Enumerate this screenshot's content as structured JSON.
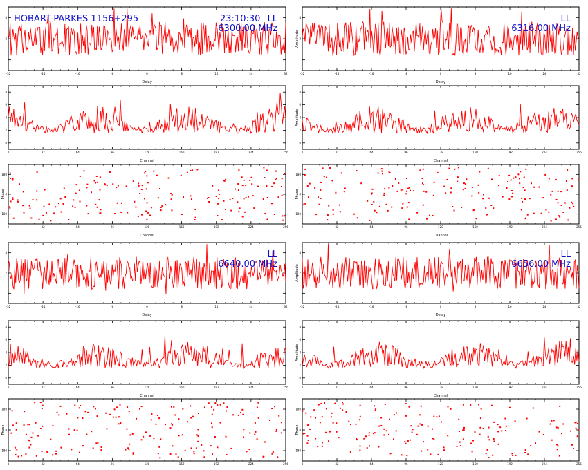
{
  "header": {
    "baseline": "HOBART-PARKES 1156+295",
    "time": "23:10:30"
  },
  "colors": {
    "trace": "#ff0000",
    "annotation": "#1010c8",
    "axis": "#000000",
    "background": "#ffffff"
  },
  "chart_data": [
    {
      "id": "band1-delay",
      "type": "line",
      "panel_type": "delay",
      "polarization": "LL",
      "frequency": "6300.00 MHz",
      "xlabel": "Delay",
      "ylabel": "",
      "xlim": [
        -32,
        32
      ],
      "ylim": [
        0,
        6
      ],
      "n_points": 300,
      "ytick_labels": [
        "",
        "2",
        "4"
      ],
      "xtick_labels": [
        "-32",
        "-24",
        "-16",
        "-8",
        "0",
        "8",
        "16",
        "24",
        "32"
      ]
    },
    {
      "id": "band2-delay",
      "type": "line",
      "panel_type": "delay",
      "polarization": "LL",
      "frequency": "6316.00 MHz",
      "xlabel": "Delay",
      "ylabel": "Amplitude",
      "xlim": [
        -32,
        32
      ],
      "ylim": [
        0,
        6
      ],
      "n_points": 300,
      "ytick_labels": [
        "",
        "2",
        "4"
      ],
      "xtick_labels": [
        "-32",
        "-24",
        "-16",
        "-8",
        "0",
        "8",
        "16",
        "24",
        "32"
      ]
    },
    {
      "id": "band1-channel",
      "type": "line",
      "panel_type": "channel",
      "xlabel": "Channel",
      "ylabel": "",
      "xlim": [
        0,
        256
      ],
      "ylim": [
        0,
        8
      ],
      "n_points": 256,
      "ytick_labels": [
        "0",
        "2",
        "4",
        "6",
        "8"
      ],
      "xtick_labels": [
        "0",
        "32",
        "64",
        "96",
        "128",
        "160",
        "192",
        "224",
        "256"
      ]
    },
    {
      "id": "band2-channel",
      "type": "line",
      "panel_type": "channel",
      "xlabel": "Channel",
      "ylabel": "Amplitude",
      "xlim": [
        0,
        256
      ],
      "ylim": [
        0,
        8
      ],
      "n_points": 256,
      "ytick_labels": [
        "0",
        "2",
        "4",
        "6",
        "8"
      ],
      "xtick_labels": [
        "0",
        "32",
        "64",
        "96",
        "128",
        "160",
        "192",
        "224",
        "256"
      ]
    },
    {
      "id": "band1-phase",
      "type": "scatter",
      "panel_type": "phase",
      "xlabel": "Channel",
      "ylabel": "Phase",
      "xlim": [
        0,
        256
      ],
      "ylim": [
        -180,
        180
      ],
      "n_points": 190,
      "ytick_labels": [
        "-180",
        "0",
        "180"
      ],
      "xtick_labels": [
        "0",
        "32",
        "64",
        "96",
        "128",
        "160",
        "192",
        "224",
        "256"
      ]
    },
    {
      "id": "band2-phase",
      "type": "scatter",
      "panel_type": "phase",
      "xlabel": "Channel",
      "ylabel": "Phase",
      "xlim": [
        0,
        256
      ],
      "ylim": [
        -180,
        180
      ],
      "n_points": 190,
      "ytick_labels": [
        "-180",
        "0",
        "180"
      ],
      "xtick_labels": [
        "0",
        "32",
        "64",
        "96",
        "128",
        "160",
        "192",
        "224",
        "256"
      ]
    },
    {
      "id": "band3-delay",
      "type": "line",
      "panel_type": "delay",
      "polarization": "LL",
      "frequency": "6640.00 MHz",
      "xlabel": "Delay",
      "ylabel": "",
      "xlim": [
        -32,
        32
      ],
      "ylim": [
        0,
        6
      ],
      "n_points": 300,
      "ytick_labels": [
        "",
        "2",
        "4"
      ],
      "xtick_labels": [
        "-32",
        "-24",
        "-16",
        "-8",
        "0",
        "8",
        "16",
        "24",
        "32"
      ]
    },
    {
      "id": "band4-delay",
      "type": "line",
      "panel_type": "delay",
      "polarization": "LL",
      "frequency": "6656.00 MHz",
      "xlabel": "Delay",
      "ylabel": "Amplitude",
      "xlim": [
        -32,
        32
      ],
      "ylim": [
        0,
        6
      ],
      "n_points": 300,
      "ytick_labels": [
        "",
        "2",
        "4"
      ],
      "xtick_labels": [
        "-32",
        "-24",
        "-16",
        "-8",
        "0",
        "8",
        "16",
        "24",
        "32"
      ]
    },
    {
      "id": "band3-channel",
      "type": "line",
      "panel_type": "channel",
      "xlabel": "Channel",
      "ylabel": "",
      "xlim": [
        0,
        256
      ],
      "ylim": [
        0,
        8
      ],
      "n_points": 256,
      "ytick_labels": [
        "0",
        "2",
        "4",
        "6",
        "8"
      ],
      "xtick_labels": [
        "0",
        "32",
        "64",
        "96",
        "128",
        "160",
        "192",
        "224",
        "256"
      ]
    },
    {
      "id": "band4-channel",
      "type": "line",
      "panel_type": "channel",
      "xlabel": "Channel",
      "ylabel": "Amplitude",
      "xlim": [
        0,
        256
      ],
      "ylim": [
        0,
        8
      ],
      "n_points": 256,
      "ytick_labels": [
        "0",
        "2",
        "4",
        "6",
        "8"
      ],
      "xtick_labels": [
        "0",
        "32",
        "64",
        "96",
        "128",
        "160",
        "192",
        "224",
        "256"
      ]
    },
    {
      "id": "band3-phase",
      "type": "scatter",
      "panel_type": "phase",
      "xlabel": "Channel",
      "ylabel": "Phase",
      "xlim": [
        0,
        256
      ],
      "ylim": [
        -180,
        180
      ],
      "n_points": 190,
      "ytick_labels": [
        "-180",
        "0",
        "180"
      ],
      "xtick_labels": [
        "0",
        "32",
        "64",
        "96",
        "128",
        "160",
        "192",
        "224",
        "256"
      ]
    },
    {
      "id": "band4-phase",
      "type": "scatter",
      "panel_type": "phase",
      "xlabel": "Channel",
      "ylabel": "Phase",
      "xlim": [
        0,
        256
      ],
      "ylim": [
        -180,
        180
      ],
      "n_points": 190,
      "ytick_labels": [
        "-180",
        "0",
        "180"
      ],
      "xtick_labels": [
        "0",
        "32",
        "64",
        "96",
        "128",
        "160",
        "192",
        "224",
        "256"
      ]
    }
  ]
}
